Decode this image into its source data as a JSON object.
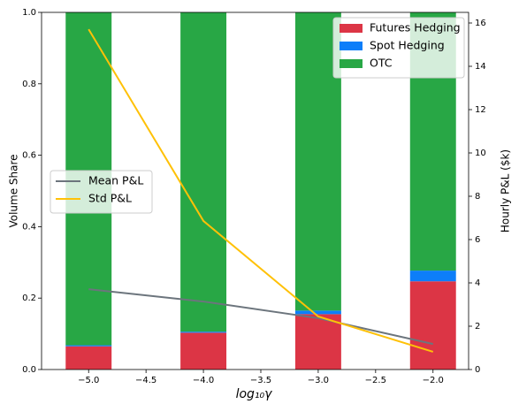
{
  "chart_data": {
    "type": "bar",
    "x": [
      -5.0,
      -4.0,
      -3.0,
      -2.0
    ],
    "x_label": "log₁₀γ",
    "y_label": "Volume Share",
    "y2_label": "Hourly P&L ($k)",
    "xlim": [
      -5.41,
      -1.69
    ],
    "xticks": [
      {
        "value": -5.0,
        "label": "−5.0"
      },
      {
        "value": -4.5,
        "label": "−4.5"
      },
      {
        "value": -4.0,
        "label": "−4.0"
      },
      {
        "value": -3.5,
        "label": "−3.5"
      },
      {
        "value": -3.0,
        "label": "−3.0"
      },
      {
        "value": -2.5,
        "label": "−2.5"
      },
      {
        "value": -2.0,
        "label": "−2.0"
      }
    ],
    "ylim": [
      0,
      1
    ],
    "yticks": [
      {
        "value": 0,
        "label": "0.0"
      },
      {
        "value": 0.2,
        "label": "0.2"
      },
      {
        "value": 0.4,
        "label": "0.4"
      },
      {
        "value": 0.6,
        "label": "0.6"
      },
      {
        "value": 0.8,
        "label": "0.8"
      },
      {
        "value": 1.0,
        "label": "1.0"
      }
    ],
    "y2lim": [
      0,
      16.49
    ],
    "y2ticks": [
      0,
      2,
      4,
      6,
      8,
      10,
      12,
      14,
      16
    ],
    "series": [
      {
        "name": "Futures Hedging",
        "color": "#dc3545",
        "values": [
          0.065,
          0.103,
          0.155,
          0.247
        ]
      },
      {
        "name": "Spot Hedging",
        "color": "#0d7ef9",
        "values": [
          0.003,
          0.003,
          0.01,
          0.03
        ]
      },
      {
        "name": "OTC",
        "color": "#28a745",
        "values": [
          0.932,
          0.894,
          0.835,
          0.723
        ]
      },
      {
        "name": "Mean P&L",
        "color": "#6c757d",
        "type": "line",
        "axis": "y2",
        "values": [
          3.71,
          3.14,
          2.37,
          1.18
        ]
      },
      {
        "name": "Std P&L",
        "color": "#ffc107",
        "type": "line",
        "axis": "y2",
        "values": [
          15.71,
          6.86,
          2.45,
          0.82
        ]
      }
    ]
  }
}
